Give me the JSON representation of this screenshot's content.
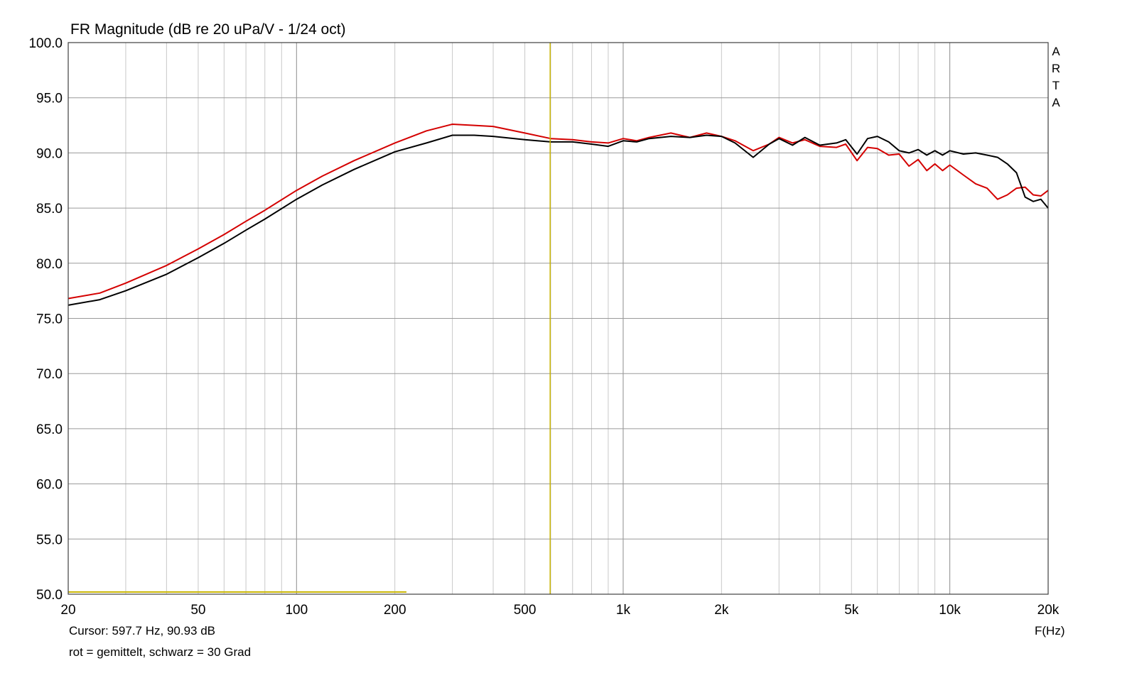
{
  "chart_data": {
    "type": "line",
    "title": "FR Magnitude (dB re 20 uPa/V - 1/24 oct)",
    "xlabel": "F(Hz)",
    "ylabel": "",
    "xscale": "log",
    "xlim": [
      20,
      20000
    ],
    "ylim": [
      50,
      100
    ],
    "grid": true,
    "y_ticks": [
      "100.0",
      "95.0",
      "90.0",
      "85.0",
      "80.0",
      "75.0",
      "70.0",
      "65.0",
      "60.0",
      "55.0",
      "50.0"
    ],
    "x_ticks": [
      {
        "value": 20,
        "label": "20"
      },
      {
        "value": 50,
        "label": "50"
      },
      {
        "value": 100,
        "label": "100"
      },
      {
        "value": 200,
        "label": "200"
      },
      {
        "value": 500,
        "label": "500"
      },
      {
        "value": 1000,
        "label": "1k"
      },
      {
        "value": 2000,
        "label": "2k"
      },
      {
        "value": 5000,
        "label": "5k"
      },
      {
        "value": 10000,
        "label": "10k"
      },
      {
        "value": 20000,
        "label": "20k"
      }
    ],
    "watermark": "ARTA",
    "cursor": {
      "frequency": 597.7,
      "level": 90.93,
      "text": "Cursor: 597.7 Hz, 90.93 dB"
    },
    "legend_note": "rot = gemittelt, schwarz = 30 Grad",
    "level_marker": {
      "from": 20,
      "to": 217,
      "level": 50.2
    },
    "colors": {
      "red": "#d40000",
      "black": "#000000",
      "cursor": "#c8b400",
      "grid": "#c8c8c8",
      "grid_major": "#8c8c8c",
      "frame": "#404040"
    },
    "series": [
      {
        "color": "red",
        "points": [
          [
            20,
            76.8
          ],
          [
            25,
            77.3
          ],
          [
            30,
            78.2
          ],
          [
            40,
            79.8
          ],
          [
            50,
            81.3
          ],
          [
            60,
            82.6
          ],
          [
            70,
            83.8
          ],
          [
            80,
            84.8
          ],
          [
            100,
            86.6
          ],
          [
            120,
            87.9
          ],
          [
            150,
            89.3
          ],
          [
            200,
            90.9
          ],
          [
            250,
            92.0
          ],
          [
            300,
            92.6
          ],
          [
            350,
            92.5
          ],
          [
            400,
            92.4
          ],
          [
            500,
            91.8
          ],
          [
            600,
            91.3
          ],
          [
            700,
            91.2
          ],
          [
            800,
            91.0
          ],
          [
            900,
            90.9
          ],
          [
            1000,
            91.3
          ],
          [
            1100,
            91.1
          ],
          [
            1200,
            91.4
          ],
          [
            1400,
            91.8
          ],
          [
            1600,
            91.4
          ],
          [
            1800,
            91.8
          ],
          [
            2000,
            91.5
          ],
          [
            2200,
            91.1
          ],
          [
            2500,
            90.2
          ],
          [
            2800,
            90.8
          ],
          [
            3000,
            91.4
          ],
          [
            3300,
            90.9
          ],
          [
            3600,
            91.2
          ],
          [
            4000,
            90.6
          ],
          [
            4500,
            90.5
          ],
          [
            4800,
            90.8
          ],
          [
            5200,
            89.3
          ],
          [
            5600,
            90.5
          ],
          [
            6000,
            90.4
          ],
          [
            6500,
            89.8
          ],
          [
            7000,
            89.9
          ],
          [
            7500,
            88.8
          ],
          [
            8000,
            89.4
          ],
          [
            8500,
            88.4
          ],
          [
            9000,
            89.0
          ],
          [
            9500,
            88.4
          ],
          [
            10000,
            88.9
          ],
          [
            11000,
            88.0
          ],
          [
            12000,
            87.2
          ],
          [
            13000,
            86.8
          ],
          [
            14000,
            85.8
          ],
          [
            15000,
            86.2
          ],
          [
            16000,
            86.8
          ],
          [
            17000,
            86.9
          ],
          [
            18000,
            86.2
          ],
          [
            19000,
            86.1
          ],
          [
            20000,
            86.6
          ]
        ]
      },
      {
        "color": "black",
        "points": [
          [
            20,
            76.2
          ],
          [
            25,
            76.7
          ],
          [
            30,
            77.5
          ],
          [
            40,
            79.0
          ],
          [
            50,
            80.5
          ],
          [
            60,
            81.8
          ],
          [
            70,
            83.0
          ],
          [
            80,
            84.0
          ],
          [
            100,
            85.8
          ],
          [
            120,
            87.1
          ],
          [
            150,
            88.5
          ],
          [
            200,
            90.1
          ],
          [
            250,
            90.9
          ],
          [
            300,
            91.6
          ],
          [
            350,
            91.6
          ],
          [
            400,
            91.5
          ],
          [
            500,
            91.2
          ],
          [
            600,
            91.0
          ],
          [
            700,
            91.0
          ],
          [
            800,
            90.8
          ],
          [
            900,
            90.6
          ],
          [
            1000,
            91.1
          ],
          [
            1100,
            91.0
          ],
          [
            1200,
            91.3
          ],
          [
            1400,
            91.5
          ],
          [
            1600,
            91.4
          ],
          [
            1800,
            91.6
          ],
          [
            2000,
            91.5
          ],
          [
            2200,
            90.9
          ],
          [
            2500,
            89.6
          ],
          [
            2800,
            90.8
          ],
          [
            3000,
            91.3
          ],
          [
            3300,
            90.7
          ],
          [
            3600,
            91.4
          ],
          [
            4000,
            90.7
          ],
          [
            4500,
            90.9
          ],
          [
            4800,
            91.2
          ],
          [
            5200,
            89.9
          ],
          [
            5600,
            91.3
          ],
          [
            6000,
            91.5
          ],
          [
            6500,
            91.0
          ],
          [
            7000,
            90.2
          ],
          [
            7500,
            90.0
          ],
          [
            8000,
            90.3
          ],
          [
            8500,
            89.8
          ],
          [
            9000,
            90.2
          ],
          [
            9500,
            89.8
          ],
          [
            10000,
            90.2
          ],
          [
            11000,
            89.9
          ],
          [
            12000,
            90.0
          ],
          [
            13000,
            89.8
          ],
          [
            14000,
            89.6
          ],
          [
            15000,
            89.0
          ],
          [
            16000,
            88.2
          ],
          [
            17000,
            86.0
          ],
          [
            18000,
            85.6
          ],
          [
            19000,
            85.8
          ],
          [
            20000,
            85.0
          ]
        ]
      }
    ]
  }
}
